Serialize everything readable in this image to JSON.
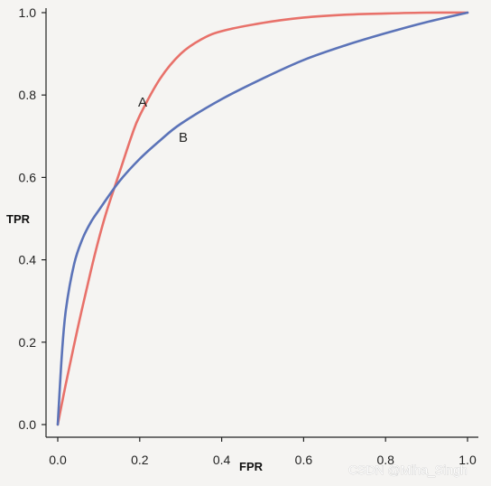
{
  "chart_data": {
    "type": "line",
    "title": "",
    "xlabel": "FPR",
    "ylabel": "TPR",
    "xlim": [
      0,
      1
    ],
    "ylim": [
      0,
      1
    ],
    "x_ticks": [
      "0.0",
      "0.2",
      "0.4",
      "0.6",
      "0.8",
      "1.0"
    ],
    "y_ticks": [
      "0.0",
      "0.2",
      "0.4",
      "0.6",
      "0.8",
      "1.0"
    ],
    "grid": false,
    "series": [
      {
        "name": "A",
        "color": "#e8716a",
        "x": [
          0.0,
          0.02,
          0.05,
          0.08,
          0.1,
          0.12,
          0.15,
          0.18,
          0.2,
          0.25,
          0.3,
          0.35,
          0.4,
          0.5,
          0.6,
          0.7,
          0.8,
          0.9,
          1.0
        ],
        "y": [
          0.0,
          0.1,
          0.24,
          0.37,
          0.45,
          0.52,
          0.61,
          0.7,
          0.75,
          0.84,
          0.9,
          0.935,
          0.955,
          0.975,
          0.988,
          0.995,
          0.998,
          1.0,
          1.0
        ]
      },
      {
        "name": "B",
        "color": "#5b73b8",
        "x": [
          0.0,
          0.01,
          0.02,
          0.04,
          0.06,
          0.08,
          0.1,
          0.15,
          0.2,
          0.25,
          0.3,
          0.4,
          0.5,
          0.6,
          0.7,
          0.8,
          0.9,
          1.0
        ],
        "y": [
          0.0,
          0.17,
          0.28,
          0.39,
          0.45,
          0.49,
          0.52,
          0.59,
          0.645,
          0.69,
          0.73,
          0.79,
          0.84,
          0.885,
          0.92,
          0.95,
          0.977,
          1.0
        ]
      }
    ],
    "annotations": [
      "A",
      "B"
    ]
  },
  "watermark": "CSDN @Miha_Singh"
}
